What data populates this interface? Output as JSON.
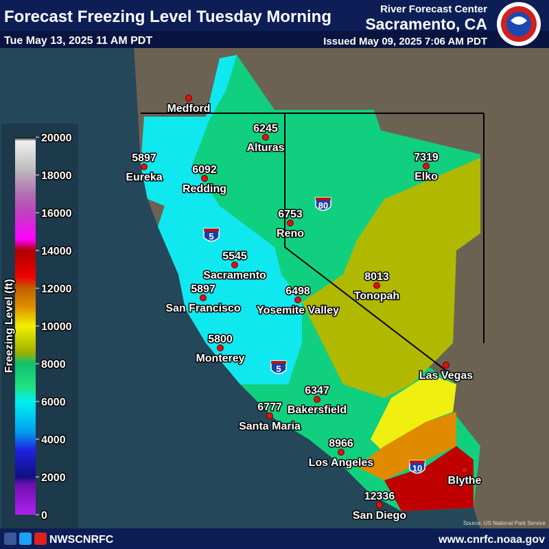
{
  "header": {
    "title": "Forecast Freezing Level Tuesday Morning",
    "valid_time": "Tue May 13, 2025 11 AM PDT",
    "agency": "River Forecast Center",
    "office": "Sacramento, CA",
    "issued": "Issued May 09, 2025 7:06 AM PDT"
  },
  "legend": {
    "label": "Freezing Level (ft)",
    "ticks": [
      0,
      2000,
      4000,
      6000,
      8000,
      10000,
      12000,
      14000,
      16000,
      18000,
      20000
    ]
  },
  "cities": [
    {
      "name": "Medford"
    },
    {
      "name": "Alturas",
      "value": "6245"
    },
    {
      "name": "Eureka",
      "value": "5897"
    },
    {
      "name": "Redding",
      "value": "6092"
    },
    {
      "name": "Elko",
      "value": "7319"
    },
    {
      "name": "Reno",
      "value": "6753"
    },
    {
      "name": "Sacramento",
      "value": "5545"
    },
    {
      "name": "San Francisco",
      "value": "5897"
    },
    {
      "name": "Yosemite Valley",
      "value": "6498"
    },
    {
      "name": "Tonopah",
      "value": "8013"
    },
    {
      "name": "Monterey",
      "value": "5800"
    },
    {
      "name": "Las Vegas"
    },
    {
      "name": "Bakersfield",
      "value": "6347"
    },
    {
      "name": "Santa Maria",
      "value": "6777"
    },
    {
      "name": "Los Angeles",
      "value": "8966"
    },
    {
      "name": "Blythe"
    },
    {
      "name": "San Diego",
      "value": "12336"
    }
  ],
  "highways": [
    "80",
    "5",
    "5",
    "10"
  ],
  "source": "Source: US National Park Service",
  "footer": {
    "handle": "NWSCNRFC",
    "website": "www.cnrfc.noaa.gov"
  }
}
